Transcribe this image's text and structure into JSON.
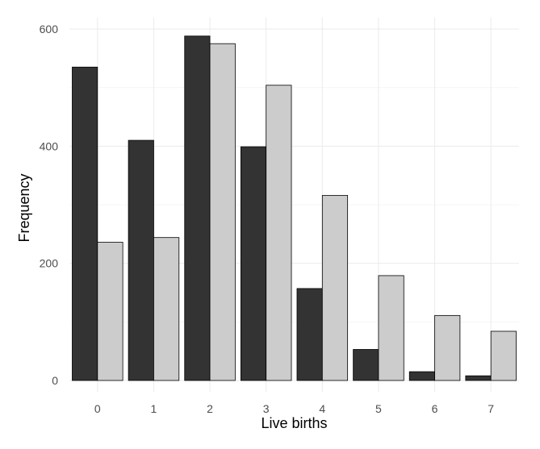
{
  "chart_data": {
    "type": "bar",
    "title": "",
    "xlabel": "Live births",
    "ylabel": "Frequency",
    "categories": [
      "0",
      "1",
      "2",
      "3",
      "4",
      "5",
      "6",
      "7"
    ],
    "series": [
      {
        "values": [
          535,
          410,
          588,
          399,
          157,
          53,
          15,
          8
        ],
        "color": "#333333"
      },
      {
        "values": [
          236,
          244,
          575,
          504,
          316,
          179,
          111,
          84
        ],
        "color": "#cccccc"
      }
    ],
    "ylim": [
      0,
      600
    ],
    "yticks": [
      0,
      200,
      400,
      600
    ],
    "grid": true,
    "legend": "none"
  }
}
